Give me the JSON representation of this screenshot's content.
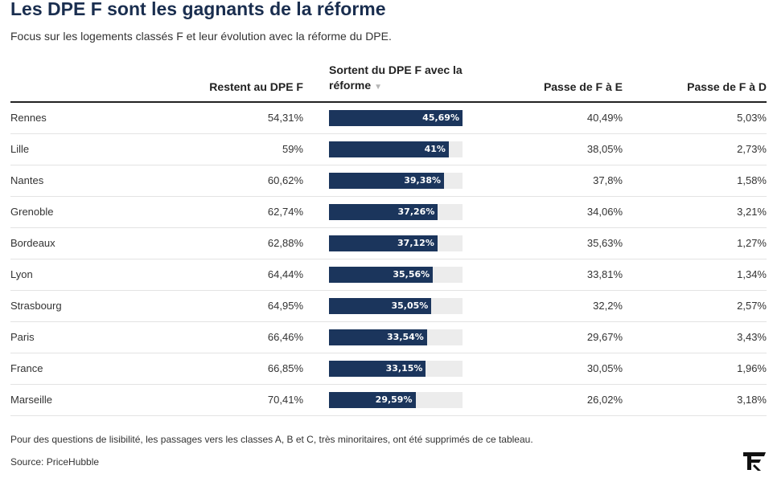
{
  "title": "Les DPE F sont les gagnants de la réforme",
  "subtitle": "Focus sur les logements classés F et leur évolution avec la réforme du DPE.",
  "columns": {
    "restent": "Restent au DPE F",
    "sortent": "Sortent du DPE F avec la réforme",
    "passe_e": "Passe de F à E",
    "passe_d": "Passe de F à D"
  },
  "sort_icon": "sort-desc-icon",
  "colors": {
    "bar": "#1b355c",
    "track": "#ececec",
    "title": "#1a2e4f"
  },
  "chart_data": {
    "type": "table",
    "bar_column": "Sortent du DPE F avec la réforme",
    "bar_max": 45.69,
    "rows": [
      {
        "city": "Rennes",
        "restent": "54,31%",
        "sortent": "45,69%",
        "sortent_value": 45.69,
        "passe_e": "40,49%",
        "passe_d": "5,03%"
      },
      {
        "city": "Lille",
        "restent": "59%",
        "sortent": "41%",
        "sortent_value": 41.0,
        "passe_e": "38,05%",
        "passe_d": "2,73%"
      },
      {
        "city": "Nantes",
        "restent": "60,62%",
        "sortent": "39,38%",
        "sortent_value": 39.38,
        "passe_e": "37,8%",
        "passe_d": "1,58%"
      },
      {
        "city": "Grenoble",
        "restent": "62,74%",
        "sortent": "37,26%",
        "sortent_value": 37.26,
        "passe_e": "34,06%",
        "passe_d": "3,21%"
      },
      {
        "city": "Bordeaux",
        "restent": "62,88%",
        "sortent": "37,12%",
        "sortent_value": 37.12,
        "passe_e": "35,63%",
        "passe_d": "1,27%"
      },
      {
        "city": "Lyon",
        "restent": "64,44%",
        "sortent": "35,56%",
        "sortent_value": 35.56,
        "passe_e": "33,81%",
        "passe_d": "1,34%"
      },
      {
        "city": "Strasbourg",
        "restent": "64,95%",
        "sortent": "35,05%",
        "sortent_value": 35.05,
        "passe_e": "32,2%",
        "passe_d": "2,57%"
      },
      {
        "city": "Paris",
        "restent": "66,46%",
        "sortent": "33,54%",
        "sortent_value": 33.54,
        "passe_e": "29,67%",
        "passe_d": "3,43%"
      },
      {
        "city": "France",
        "restent": "66,85%",
        "sortent": "33,15%",
        "sortent_value": 33.15,
        "passe_e": "30,05%",
        "passe_d": "1,96%"
      },
      {
        "city": "Marseille",
        "restent": "70,41%",
        "sortent": "29,59%",
        "sortent_value": 29.59,
        "passe_e": "26,02%",
        "passe_d": "3,18%"
      }
    ]
  },
  "note": "Pour des questions de lisibilité, les passages vers les classes A, B et C, très minoritaires, ont été supprimés de ce tableau.",
  "source": "Source: PriceHubble",
  "logo": "le-figaro-logo-icon"
}
